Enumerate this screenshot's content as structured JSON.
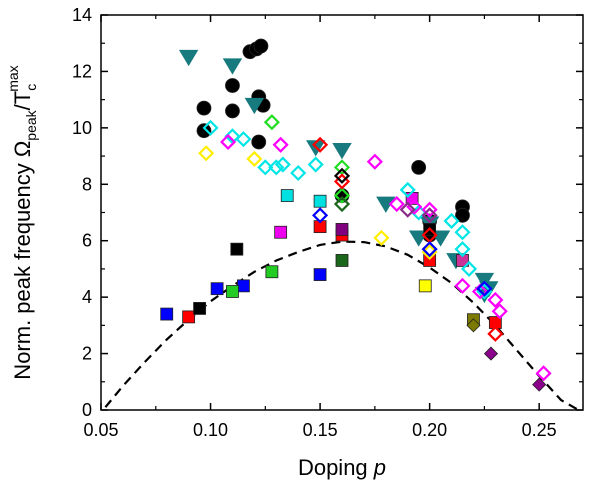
{
  "chart_data": {
    "type": "scatter",
    "xlabel": "Doping p",
    "xlabel_parts": {
      "text": "Doping ",
      "variable": "p"
    },
    "ylabel_parts": {
      "text": "Norm. peak frequency Ω",
      "sub1": "peak",
      "slash": "/T",
      "sub2": "c",
      "sup2": "max"
    },
    "xlim": [
      0.05,
      0.27
    ],
    "ylim": [
      0,
      14
    ],
    "xticks": [
      0.05,
      0.1,
      0.15,
      0.2,
      0.25
    ],
    "xtick_labels": [
      "0.05",
      "0.10",
      "0.15",
      "0.20",
      "0.25"
    ],
    "yticks": [
      0,
      2,
      4,
      6,
      8,
      10,
      12,
      14
    ],
    "ytick_labels": [
      "0",
      "2",
      "4",
      "6",
      "8",
      "10",
      "12",
      "14"
    ],
    "grid": false,
    "curve": {
      "style": "dashed",
      "color": "#000000",
      "x": [
        0.052,
        0.06,
        0.07,
        0.08,
        0.09,
        0.1,
        0.11,
        0.12,
        0.13,
        0.14,
        0.15,
        0.16,
        0.17,
        0.18,
        0.19,
        0.2,
        0.21,
        0.22,
        0.23,
        0.24,
        0.25,
        0.26,
        0.268
      ],
      "y": [
        0.1,
        0.85,
        1.7,
        2.5,
        3.2,
        3.85,
        4.4,
        4.9,
        5.3,
        5.6,
        5.85,
        5.97,
        5.95,
        5.8,
        5.5,
        5.05,
        4.5,
        3.8,
        3.0,
        2.1,
        1.2,
        0.35,
        0.0
      ]
    },
    "series": [
      {
        "marker": "circle",
        "filled": true,
        "color": "#000000",
        "points": [
          [
            0.097,
            10.7
          ],
          [
            0.097,
            9.9
          ],
          [
            0.11,
            11.5
          ],
          [
            0.11,
            10.6
          ],
          [
            0.118,
            12.7
          ],
          [
            0.121,
            12.8
          ],
          [
            0.123,
            12.9
          ],
          [
            0.122,
            11.1
          ],
          [
            0.124,
            10.8
          ],
          [
            0.122,
            9.5
          ],
          [
            0.16,
            7.6
          ],
          [
            0.195,
            8.6
          ],
          [
            0.215,
            7.2
          ],
          [
            0.215,
            6.9
          ],
          [
            0.2,
            6.7
          ],
          [
            0.2,
            6.2
          ]
        ]
      },
      {
        "marker": "triangle-down",
        "filled": true,
        "color": "#177a7e",
        "points": [
          [
            0.09,
            12.5
          ],
          [
            0.11,
            12.2
          ],
          [
            0.12,
            10.8
          ],
          [
            0.148,
            9.3
          ],
          [
            0.16,
            9.2
          ],
          [
            0.18,
            7.3
          ],
          [
            0.195,
            6.1
          ],
          [
            0.2,
            6.6
          ],
          [
            0.205,
            6.1
          ],
          [
            0.212,
            5.3
          ],
          [
            0.225,
            4.6
          ],
          [
            0.227,
            4.3
          ],
          [
            0.225,
            4.1
          ]
        ]
      },
      {
        "marker": "square",
        "filled": true,
        "color": "#0000ff",
        "points": [
          [
            0.08,
            3.4
          ],
          [
            0.103,
            4.3
          ],
          [
            0.115,
            4.4
          ],
          [
            0.15,
            4.8
          ]
        ]
      },
      {
        "marker": "square",
        "filled": true,
        "color": "#ff0000",
        "points": [
          [
            0.09,
            3.3
          ],
          [
            0.15,
            6.5
          ],
          [
            0.16,
            6.2
          ],
          [
            0.2,
            5.3
          ],
          [
            0.23,
            3.1
          ]
        ]
      },
      {
        "marker": "square",
        "filled": true,
        "color": "#000000",
        "points": [
          [
            0.095,
            3.6
          ],
          [
            0.112,
            5.7
          ],
          [
            0.2,
            6.4
          ]
        ]
      },
      {
        "marker": "square",
        "filled": true,
        "color": "#22cc22",
        "points": [
          [
            0.11,
            4.2
          ],
          [
            0.128,
            4.9
          ]
        ]
      },
      {
        "marker": "square",
        "filled": true,
        "color": "#1a661a",
        "points": [
          [
            0.16,
            5.3
          ]
        ]
      },
      {
        "marker": "square",
        "filled": true,
        "color": "#ee00ee",
        "points": [
          [
            0.132,
            6.3
          ],
          [
            0.192,
            7.5
          ]
        ]
      },
      {
        "marker": "square",
        "filled": true,
        "color": "#00e0e0",
        "points": [
          [
            0.135,
            7.6
          ],
          [
            0.15,
            7.4
          ]
        ]
      },
      {
        "marker": "square",
        "filled": true,
        "color": "#ffff00",
        "points": [
          [
            0.198,
            4.4
          ]
        ]
      },
      {
        "marker": "square",
        "filled": true,
        "color": "#800080",
        "points": [
          [
            0.16,
            6.4
          ]
        ]
      },
      {
        "marker": "square",
        "filled": true,
        "color": "#cc3399",
        "points": [
          [
            0.215,
            5.3
          ]
        ]
      },
      {
        "marker": "square",
        "filled": true,
        "color": "#7d7a00",
        "points": [
          [
            0.22,
            3.2
          ]
        ]
      },
      {
        "marker": "diamond",
        "filled": true,
        "color": "#8b008b",
        "points": [
          [
            0.228,
            2.0
          ],
          [
            0.25,
            0.9
          ]
        ]
      },
      {
        "marker": "diamond",
        "filled": true,
        "color": "#7d7a00",
        "points": [
          [
            0.22,
            3.0
          ]
        ]
      },
      {
        "marker": "diamond",
        "filled": false,
        "color": "#00e5e5",
        "points": [
          [
            0.1,
            10.0
          ],
          [
            0.11,
            9.7
          ],
          [
            0.115,
            9.6
          ],
          [
            0.125,
            8.6
          ],
          [
            0.13,
            8.6
          ],
          [
            0.133,
            8.7
          ],
          [
            0.14,
            8.4
          ],
          [
            0.148,
            8.7
          ],
          [
            0.19,
            7.8
          ],
          [
            0.195,
            7.0
          ],
          [
            0.21,
            6.7
          ],
          [
            0.215,
            5.7
          ],
          [
            0.218,
            5.0
          ],
          [
            0.215,
            6.3
          ],
          [
            0.225,
            4.2
          ]
        ]
      },
      {
        "marker": "diamond",
        "filled": false,
        "color": "#ff00ff",
        "points": [
          [
            0.108,
            9.5
          ],
          [
            0.132,
            9.4
          ],
          [
            0.175,
            8.8
          ],
          [
            0.185,
            7.3
          ],
          [
            0.193,
            7.2
          ],
          [
            0.2,
            7.1
          ],
          [
            0.215,
            4.4
          ],
          [
            0.223,
            4.2
          ],
          [
            0.23,
            3.9
          ],
          [
            0.232,
            3.5
          ],
          [
            0.252,
            1.3
          ]
        ]
      },
      {
        "marker": "diamond",
        "filled": false,
        "color": "#ffee00",
        "points": [
          [
            0.098,
            9.1
          ],
          [
            0.12,
            8.9
          ],
          [
            0.178,
            6.1
          ],
          [
            0.2,
            5.6
          ]
        ]
      },
      {
        "marker": "diamond",
        "filled": false,
        "color": "#22dd22",
        "points": [
          [
            0.128,
            10.2
          ],
          [
            0.16,
            8.6
          ],
          [
            0.16,
            7.6
          ]
        ]
      },
      {
        "marker": "diamond",
        "filled": false,
        "color": "#ff0000",
        "points": [
          [
            0.15,
            9.4
          ],
          [
            0.16,
            8.1
          ],
          [
            0.2,
            6.2
          ],
          [
            0.23,
            2.7
          ]
        ]
      },
      {
        "marker": "diamond",
        "filled": false,
        "color": "#000000",
        "points": [
          [
            0.16,
            8.3
          ]
        ]
      },
      {
        "marker": "diamond",
        "filled": false,
        "color": "#0000ff",
        "points": [
          [
            0.15,
            6.9
          ],
          [
            0.2,
            5.7
          ],
          [
            0.225,
            4.3
          ]
        ]
      },
      {
        "marker": "diamond",
        "filled": false,
        "color": "#8b2b8b",
        "points": [
          [
            0.19,
            7.1
          ],
          [
            0.2,
            6.9
          ]
        ]
      },
      {
        "marker": "diamond",
        "filled": false,
        "color": "#1a661a",
        "points": [
          [
            0.16,
            7.3
          ]
        ]
      }
    ]
  }
}
